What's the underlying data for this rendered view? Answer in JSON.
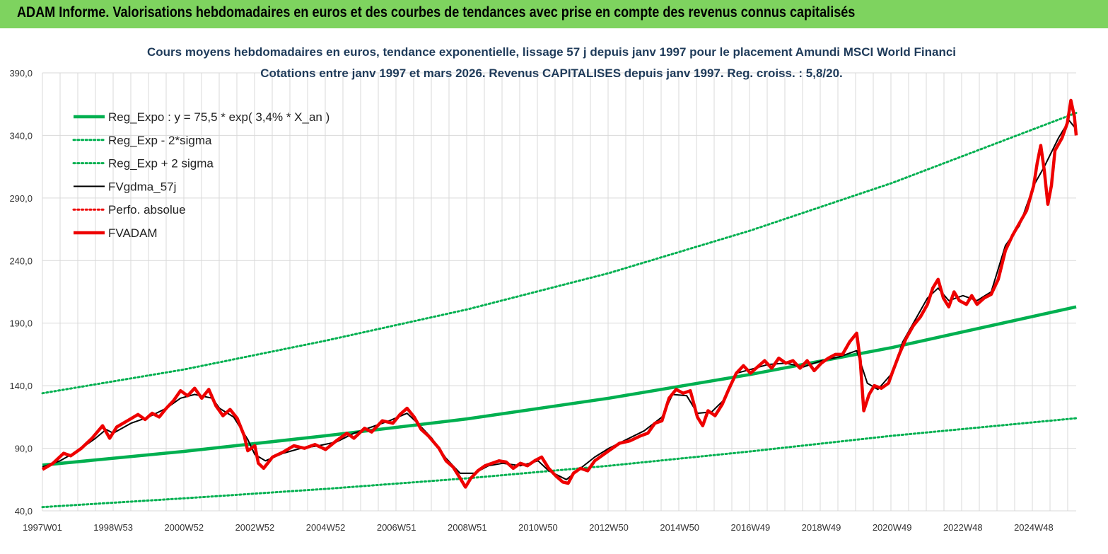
{
  "header": {
    "title": "ADAM Informe. Valorisations hebdomadaires en euros et des courbes de tendances avec prise en compte des revenus connus capitalisés"
  },
  "colors": {
    "header_bg": "#7ed35f",
    "trend": "#00b050",
    "smoothed": "#000000",
    "price": "#ee0000",
    "perfo": "#ee0000",
    "grid": "#d9d9d9"
  },
  "chart_data": {
    "type": "line",
    "title_lines": [
      "Cours moyens hebdomadaires en euros, tendance exponentielle, lissage 57 j depuis janv 1997  pour le placement Amundi MSCI World Financi",
      "Cotations entre janv 1997 et mars 2026. Revenus  CAPITALISES  depuis janv 1997. Reg. croiss. : 5,8/20."
    ],
    "ylim": [
      40,
      390
    ],
    "ytick_values": [
      40,
      90,
      140,
      190,
      240,
      290,
      340,
      390
    ],
    "ytick_labels": [
      "40,0",
      "90,0",
      "140,0",
      "190,0",
      "240,0",
      "290,0",
      "340,0",
      "390,0"
    ],
    "xlim": [
      1997.0,
      2026.2
    ],
    "xtick_positions": [
      1997.0,
      1999.0,
      2001.0,
      2003.0,
      2005.0,
      2007.0,
      2009.0,
      2011.0,
      2013.0,
      2015.0,
      2017.0,
      2019.0,
      2021.0,
      2023.0,
      2025.0
    ],
    "xtick_labels": [
      "1997W01",
      "1998W53",
      "2000W52",
      "2002W52",
      "2004W52",
      "2006W51",
      "2008W51",
      "2010W50",
      "2012W50",
      "2014W50",
      "2016W49",
      "2018W49",
      "2020W49",
      "2022W48",
      "2024W48"
    ],
    "grid": true,
    "legend_position": "top-left",
    "series": [
      {
        "name": "Reg_Expo : y = 75,5 * exp( 3,4% *  X_an )",
        "style": "solid-thick",
        "color": "#00b050",
        "points": [
          [
            1997.0,
            76.5
          ],
          [
            2001.0,
            87.5
          ],
          [
            2005.0,
            100.0
          ],
          [
            2009.0,
            113.5
          ],
          [
            2013.0,
            130.0
          ],
          [
            2017.0,
            149.0
          ],
          [
            2021.0,
            170.5
          ],
          [
            2026.2,
            203.0
          ]
        ]
      },
      {
        "name": "Reg_Exp - 2*sigma",
        "style": "dotted",
        "color": "#00b050",
        "points": [
          [
            1997.0,
            43.0
          ],
          [
            2001.0,
            50.0
          ],
          [
            2005.0,
            57.5
          ],
          [
            2009.0,
            66.0
          ],
          [
            2013.0,
            76.0
          ],
          [
            2017.0,
            87.5
          ],
          [
            2021.0,
            100.0
          ],
          [
            2026.2,
            114.0
          ]
        ]
      },
      {
        "name": "Reg_Exp + 2 sigma",
        "style": "dotted",
        "color": "#00b050",
        "points": [
          [
            1997.0,
            134.0
          ],
          [
            2001.0,
            153.0
          ],
          [
            2005.0,
            176.0
          ],
          [
            2009.0,
            201.0
          ],
          [
            2013.0,
            230.0
          ],
          [
            2017.0,
            264.0
          ],
          [
            2021.0,
            302.0
          ],
          [
            2026.2,
            358.0
          ]
        ]
      },
      {
        "name": "FVgdma_57j",
        "style": "solid",
        "color": "#000000",
        "points": [
          [
            1997.0,
            75.0
          ],
          [
            1997.5,
            80.0
          ],
          [
            1998.0,
            88.0
          ],
          [
            1998.5,
            98.0
          ],
          [
            1998.8,
            105.0
          ],
          [
            1999.0,
            102.0
          ],
          [
            1999.5,
            110.0
          ],
          [
            2000.0,
            115.0
          ],
          [
            2000.5,
            122.0
          ],
          [
            2000.9,
            130.0
          ],
          [
            2001.3,
            133.0
          ],
          [
            2001.8,
            130.0
          ],
          [
            2002.0,
            122.0
          ],
          [
            2002.4,
            115.0
          ],
          [
            2002.8,
            97.0
          ],
          [
            2003.0,
            85.0
          ],
          [
            2003.3,
            80.0
          ],
          [
            2003.8,
            86.0
          ],
          [
            2004.3,
            90.0
          ],
          [
            2004.8,
            92.0
          ],
          [
            2005.3,
            95.0
          ],
          [
            2005.8,
            102.0
          ],
          [
            2006.3,
            107.0
          ],
          [
            2006.8,
            112.0
          ],
          [
            2007.3,
            118.0
          ],
          [
            2007.6,
            110.0
          ],
          [
            2008.0,
            98.0
          ],
          [
            2008.4,
            82.0
          ],
          [
            2008.8,
            70.0
          ],
          [
            2009.2,
            70.0
          ],
          [
            2009.6,
            76.0
          ],
          [
            2010.0,
            78.0
          ],
          [
            2010.5,
            76.0
          ],
          [
            2011.0,
            80.0
          ],
          [
            2011.3,
            72.0
          ],
          [
            2011.8,
            65.0
          ],
          [
            2012.2,
            74.0
          ],
          [
            2012.6,
            83.0
          ],
          [
            2013.0,
            90.0
          ],
          [
            2013.5,
            97.0
          ],
          [
            2014.0,
            104.0
          ],
          [
            2014.5,
            115.0
          ],
          [
            2014.8,
            133.0
          ],
          [
            2015.2,
            132.0
          ],
          [
            2015.5,
            118.0
          ],
          [
            2015.9,
            119.0
          ],
          [
            2016.3,
            130.0
          ],
          [
            2016.6,
            150.0
          ],
          [
            2017.0,
            153.0
          ],
          [
            2017.5,
            157.0
          ],
          [
            2018.0,
            158.0
          ],
          [
            2018.5,
            155.0
          ],
          [
            2019.0,
            160.0
          ],
          [
            2019.5,
            163.0
          ],
          [
            2020.0,
            168.0
          ],
          [
            2020.3,
            142.0
          ],
          [
            2020.6,
            137.0
          ],
          [
            2021.0,
            150.0
          ],
          [
            2021.3,
            175.0
          ],
          [
            2021.7,
            195.0
          ],
          [
            2022.0,
            210.0
          ],
          [
            2022.3,
            218.0
          ],
          [
            2022.6,
            208.0
          ],
          [
            2023.0,
            212.0
          ],
          [
            2023.4,
            208.0
          ],
          [
            2023.8,
            215.0
          ],
          [
            2024.2,
            252.0
          ],
          [
            2024.6,
            268.0
          ],
          [
            2025.0,
            300.0
          ],
          [
            2025.3,
            315.0
          ],
          [
            2025.7,
            338.0
          ],
          [
            2026.0,
            352.0
          ],
          [
            2026.2,
            345.0
          ]
        ]
      },
      {
        "name": "Perfo. absolue",
        "style": "dotted",
        "color": "#ee0000",
        "points": []
      },
      {
        "name": "FVADAM",
        "style": "solid-thick",
        "color": "#ee0000",
        "points": [
          [
            1997.0,
            73.0
          ],
          [
            1997.3,
            78.0
          ],
          [
            1997.6,
            86.0
          ],
          [
            1997.8,
            84.0
          ],
          [
            1998.1,
            90.0
          ],
          [
            1998.4,
            98.0
          ],
          [
            1998.7,
            108.0
          ],
          [
            1998.9,
            98.0
          ],
          [
            1999.1,
            107.0
          ],
          [
            1999.4,
            112.0
          ],
          [
            1999.7,
            117.0
          ],
          [
            1999.9,
            113.0
          ],
          [
            2000.1,
            118.0
          ],
          [
            2000.3,
            115.0
          ],
          [
            2000.5,
            122.0
          ],
          [
            2000.7,
            128.0
          ],
          [
            2000.9,
            136.0
          ],
          [
            2001.1,
            132.0
          ],
          [
            2001.3,
            138.0
          ],
          [
            2001.5,
            130.0
          ],
          [
            2001.7,
            137.0
          ],
          [
            2001.9,
            124.0
          ],
          [
            2002.1,
            116.0
          ],
          [
            2002.3,
            121.0
          ],
          [
            2002.5,
            114.0
          ],
          [
            2002.7,
            100.0
          ],
          [
            2002.8,
            88.0
          ],
          [
            2003.0,
            92.0
          ],
          [
            2003.1,
            78.0
          ],
          [
            2003.25,
            74.0
          ],
          [
            2003.5,
            83.0
          ],
          [
            2003.8,
            87.0
          ],
          [
            2004.1,
            92.0
          ],
          [
            2004.4,
            90.0
          ],
          [
            2004.7,
            93.0
          ],
          [
            2005.0,
            89.0
          ],
          [
            2005.3,
            96.0
          ],
          [
            2005.6,
            102.0
          ],
          [
            2005.8,
            98.0
          ],
          [
            2006.1,
            106.0
          ],
          [
            2006.3,
            103.0
          ],
          [
            2006.6,
            112.0
          ],
          [
            2006.9,
            110.0
          ],
          [
            2007.1,
            117.0
          ],
          [
            2007.3,
            122.0
          ],
          [
            2007.5,
            115.0
          ],
          [
            2007.7,
            105.0
          ],
          [
            2007.9,
            100.0
          ],
          [
            2008.2,
            90.0
          ],
          [
            2008.4,
            80.0
          ],
          [
            2008.6,
            75.0
          ],
          [
            2008.8,
            66.0
          ],
          [
            2008.95,
            59.0
          ],
          [
            2009.1,
            66.0
          ],
          [
            2009.3,
            72.0
          ],
          [
            2009.5,
            76.0
          ],
          [
            2009.7,
            78.0
          ],
          [
            2009.9,
            80.0
          ],
          [
            2010.1,
            79.0
          ],
          [
            2010.3,
            74.0
          ],
          [
            2010.5,
            78.0
          ],
          [
            2010.7,
            76.0
          ],
          [
            2010.9,
            80.0
          ],
          [
            2011.1,
            83.0
          ],
          [
            2011.3,
            74.0
          ],
          [
            2011.5,
            68.0
          ],
          [
            2011.7,
            63.0
          ],
          [
            2011.85,
            62.0
          ],
          [
            2012.0,
            70.0
          ],
          [
            2012.2,
            74.0
          ],
          [
            2012.4,
            72.0
          ],
          [
            2012.6,
            80.0
          ],
          [
            2012.8,
            84.0
          ],
          [
            2013.0,
            88.0
          ],
          [
            2013.3,
            94.0
          ],
          [
            2013.6,
            96.0
          ],
          [
            2013.9,
            100.0
          ],
          [
            2014.1,
            102.0
          ],
          [
            2014.3,
            110.0
          ],
          [
            2014.5,
            112.0
          ],
          [
            2014.7,
            130.0
          ],
          [
            2014.9,
            137.0
          ],
          [
            2015.1,
            134.0
          ],
          [
            2015.3,
            136.0
          ],
          [
            2015.5,
            115.0
          ],
          [
            2015.65,
            108.0
          ],
          [
            2015.8,
            120.0
          ],
          [
            2016.0,
            116.0
          ],
          [
            2016.2,
            125.0
          ],
          [
            2016.4,
            138.0
          ],
          [
            2016.6,
            150.0
          ],
          [
            2016.8,
            156.0
          ],
          [
            2017.0,
            150.0
          ],
          [
            2017.2,
            155.0
          ],
          [
            2017.4,
            160.0
          ],
          [
            2017.6,
            154.0
          ],
          [
            2017.8,
            162.0
          ],
          [
            2018.0,
            158.0
          ],
          [
            2018.2,
            160.0
          ],
          [
            2018.4,
            154.0
          ],
          [
            2018.6,
            160.0
          ],
          [
            2018.8,
            152.0
          ],
          [
            2019.0,
            158.0
          ],
          [
            2019.2,
            162.0
          ],
          [
            2019.4,
            165.0
          ],
          [
            2019.6,
            165.0
          ],
          [
            2019.8,
            175.0
          ],
          [
            2020.0,
            182.0
          ],
          [
            2020.1,
            160.0
          ],
          [
            2020.2,
            120.0
          ],
          [
            2020.35,
            133.0
          ],
          [
            2020.5,
            140.0
          ],
          [
            2020.7,
            138.0
          ],
          [
            2020.9,
            142.0
          ],
          [
            2021.0,
            150.0
          ],
          [
            2021.2,
            165.0
          ],
          [
            2021.4,
            178.0
          ],
          [
            2021.6,
            188.0
          ],
          [
            2021.8,
            195.0
          ],
          [
            2022.0,
            205.0
          ],
          [
            2022.15,
            218.0
          ],
          [
            2022.3,
            225.0
          ],
          [
            2022.45,
            210.0
          ],
          [
            2022.6,
            203.0
          ],
          [
            2022.75,
            215.0
          ],
          [
            2022.9,
            208.0
          ],
          [
            2023.1,
            205.0
          ],
          [
            2023.25,
            212.0
          ],
          [
            2023.4,
            205.0
          ],
          [
            2023.6,
            210.0
          ],
          [
            2023.8,
            213.0
          ],
          [
            2024.0,
            225.0
          ],
          [
            2024.2,
            248.0
          ],
          [
            2024.4,
            260.0
          ],
          [
            2024.6,
            270.0
          ],
          [
            2024.8,
            280.0
          ],
          [
            2025.0,
            300.0
          ],
          [
            2025.1,
            318.0
          ],
          [
            2025.2,
            332.0
          ],
          [
            2025.3,
            312.0
          ],
          [
            2025.4,
            285.0
          ],
          [
            2025.5,
            300.0
          ],
          [
            2025.6,
            328.0
          ],
          [
            2025.8,
            338.0
          ],
          [
            2025.95,
            350.0
          ],
          [
            2026.05,
            368.0
          ],
          [
            2026.15,
            355.0
          ],
          [
            2026.2,
            340.0
          ]
        ]
      }
    ]
  }
}
